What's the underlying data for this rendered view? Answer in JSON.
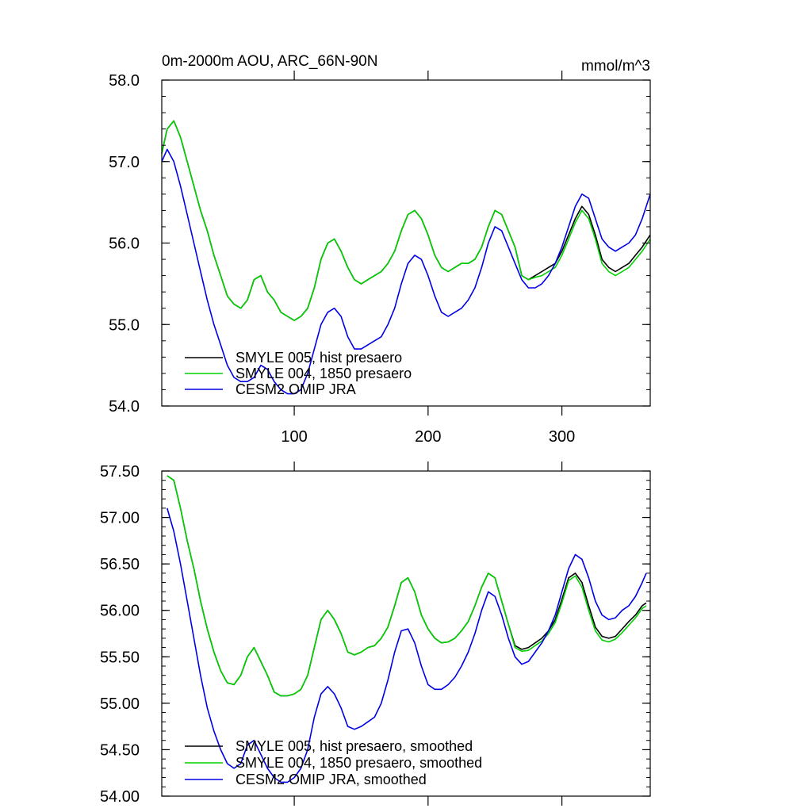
{
  "figure": {
    "title_left": "0m-2000m AOU, ARC_66N-90N",
    "title_right": "mmol/m^3"
  },
  "chart_data": [
    {
      "type": "line",
      "title": "0m-2000m AOU, ARC_66N-90N",
      "units": "mmol/m^3",
      "xlabel": "",
      "ylabel": "",
      "xlim": [
        1,
        366
      ],
      "ylim": [
        54.0,
        58.0
      ],
      "xticks": [
        100,
        200,
        300
      ],
      "xtick_labels": [
        "100",
        "200",
        "300"
      ],
      "yticks": [
        54.0,
        55.0,
        56.0,
        57.0,
        58.0
      ],
      "ytick_labels": [
        "54.0",
        "55.0",
        "56.0",
        "57.0",
        "58.0"
      ],
      "grid": false,
      "legend_position": "bottom-left",
      "series": [
        {
          "name": "SMYLE 005, hist presaero",
          "color": "#000000",
          "x": [
            1,
            5,
            10,
            15,
            20,
            25,
            30,
            35,
            40,
            45,
            50,
            55,
            60,
            65,
            70,
            75,
            80,
            85,
            90,
            95,
            100,
            105,
            110,
            115,
            120,
            125,
            130,
            135,
            140,
            145,
            150,
            155,
            160,
            165,
            170,
            175,
            180,
            185,
            190,
            195,
            200,
            205,
            210,
            215,
            220,
            225,
            230,
            235,
            240,
            245,
            250,
            255,
            260,
            265,
            270,
            275,
            280,
            285,
            290,
            295,
            300,
            305,
            310,
            315,
            320,
            325,
            330,
            335,
            340,
            345,
            350,
            355,
            360,
            366
          ],
          "values": [
            57.1,
            57.4,
            57.5,
            57.3,
            57.0,
            56.7,
            56.4,
            56.15,
            55.85,
            55.6,
            55.35,
            55.25,
            55.2,
            55.3,
            55.55,
            55.6,
            55.4,
            55.3,
            55.15,
            55.1,
            55.05,
            55.1,
            55.2,
            55.45,
            55.8,
            56.0,
            56.05,
            55.9,
            55.7,
            55.55,
            55.5,
            55.55,
            55.6,
            55.65,
            55.75,
            55.9,
            56.15,
            56.35,
            56.4,
            56.3,
            56.1,
            55.85,
            55.7,
            55.65,
            55.7,
            55.75,
            55.75,
            55.8,
            55.95,
            56.2,
            56.4,
            56.35,
            56.15,
            55.95,
            55.6,
            55.55,
            55.6,
            55.65,
            55.7,
            55.75,
            55.9,
            56.1,
            56.3,
            56.45,
            56.35,
            56.1,
            55.8,
            55.7,
            55.65,
            55.7,
            55.75,
            55.85,
            55.95,
            56.1
          ]
        },
        {
          "name": "SMYLE 004, 1850 presaero",
          "color": "#00d200",
          "x": [
            1,
            5,
            10,
            15,
            20,
            25,
            30,
            35,
            40,
            45,
            50,
            55,
            60,
            65,
            70,
            75,
            80,
            85,
            90,
            95,
            100,
            105,
            110,
            115,
            120,
            125,
            130,
            135,
            140,
            145,
            150,
            155,
            160,
            165,
            170,
            175,
            180,
            185,
            190,
            195,
            200,
            205,
            210,
            215,
            220,
            225,
            230,
            235,
            240,
            245,
            250,
            255,
            260,
            265,
            270,
            275,
            280,
            285,
            290,
            295,
            300,
            305,
            310,
            315,
            320,
            325,
            330,
            335,
            340,
            345,
            350,
            355,
            360,
            366
          ],
          "values": [
            57.1,
            57.4,
            57.5,
            57.3,
            57.0,
            56.7,
            56.4,
            56.15,
            55.85,
            55.6,
            55.35,
            55.25,
            55.2,
            55.3,
            55.55,
            55.6,
            55.4,
            55.3,
            55.15,
            55.1,
            55.05,
            55.1,
            55.2,
            55.45,
            55.8,
            56.0,
            56.05,
            55.9,
            55.7,
            55.55,
            55.5,
            55.55,
            55.6,
            55.65,
            55.75,
            55.9,
            56.15,
            56.35,
            56.4,
            56.3,
            56.1,
            55.85,
            55.7,
            55.65,
            55.7,
            55.75,
            55.75,
            55.8,
            55.95,
            56.2,
            56.4,
            56.35,
            56.15,
            55.95,
            55.6,
            55.55,
            55.58,
            55.6,
            55.65,
            55.7,
            55.85,
            56.05,
            56.25,
            56.4,
            56.3,
            56.05,
            55.75,
            55.65,
            55.6,
            55.65,
            55.7,
            55.8,
            55.9,
            56.05
          ]
        },
        {
          "name": "CESM2 OMIP JRA",
          "color": "#0000e6",
          "x": [
            1,
            5,
            10,
            15,
            20,
            25,
            30,
            35,
            40,
            45,
            50,
            55,
            60,
            65,
            70,
            75,
            80,
            85,
            90,
            95,
            100,
            105,
            110,
            115,
            120,
            125,
            130,
            135,
            140,
            145,
            150,
            155,
            160,
            165,
            170,
            175,
            180,
            185,
            190,
            195,
            200,
            205,
            210,
            215,
            220,
            225,
            230,
            235,
            240,
            245,
            250,
            255,
            260,
            265,
            270,
            275,
            280,
            285,
            290,
            295,
            300,
            305,
            310,
            315,
            320,
            325,
            330,
            335,
            340,
            345,
            350,
            355,
            360,
            366
          ],
          "values": [
            57.0,
            57.15,
            57.0,
            56.7,
            56.35,
            56.0,
            55.65,
            55.3,
            55.0,
            54.75,
            54.5,
            54.35,
            54.3,
            54.3,
            54.35,
            54.5,
            54.45,
            54.3,
            54.2,
            54.15,
            54.15,
            54.2,
            54.4,
            54.7,
            55.0,
            55.15,
            55.2,
            55.1,
            54.85,
            54.7,
            54.7,
            54.75,
            54.8,
            54.85,
            55.0,
            55.2,
            55.5,
            55.75,
            55.85,
            55.8,
            55.6,
            55.35,
            55.15,
            55.1,
            55.15,
            55.2,
            55.3,
            55.45,
            55.7,
            56.0,
            56.2,
            56.15,
            55.95,
            55.75,
            55.55,
            55.45,
            55.45,
            55.5,
            55.6,
            55.75,
            55.95,
            56.2,
            56.45,
            56.6,
            56.55,
            56.3,
            56.05,
            55.95,
            55.9,
            55.95,
            56.0,
            56.1,
            56.3,
            56.6
          ]
        }
      ]
    },
    {
      "type": "line",
      "title": "",
      "xlabel": "",
      "ylabel": "",
      "xlim": [
        1,
        366
      ],
      "ylim": [
        54.0,
        57.5
      ],
      "xticks": [
        100,
        200,
        300
      ],
      "xtick_labels": [],
      "yticks": [
        54.0,
        54.5,
        55.0,
        55.5,
        56.0,
        56.5,
        57.0,
        57.5
      ],
      "ytick_labels": [
        "54.00",
        "54.50",
        "55.00",
        "55.50",
        "56.00",
        "56.50",
        "57.00",
        "57.50"
      ],
      "grid": false,
      "legend_position": "bottom-left",
      "series": [
        {
          "name": "SMYLE 005, hist presaero, smoothed",
          "color": "#000000",
          "x": [
            5,
            10,
            15,
            20,
            25,
            30,
            35,
            40,
            45,
            50,
            55,
            60,
            65,
            70,
            75,
            80,
            85,
            90,
            95,
            100,
            105,
            110,
            115,
            120,
            125,
            130,
            135,
            140,
            145,
            150,
            155,
            160,
            165,
            170,
            175,
            180,
            185,
            190,
            195,
            200,
            205,
            210,
            215,
            220,
            225,
            230,
            235,
            240,
            245,
            250,
            255,
            260,
            265,
            270,
            275,
            280,
            285,
            290,
            295,
            300,
            305,
            310,
            315,
            320,
            325,
            330,
            335,
            340,
            345,
            350,
            355,
            360,
            363
          ],
          "values": [
            57.45,
            57.4,
            57.1,
            56.75,
            56.45,
            56.1,
            55.8,
            55.55,
            55.35,
            55.22,
            55.2,
            55.3,
            55.5,
            55.6,
            55.45,
            55.3,
            55.12,
            55.08,
            55.08,
            55.1,
            55.15,
            55.3,
            55.6,
            55.9,
            56.0,
            55.9,
            55.75,
            55.55,
            55.52,
            55.55,
            55.6,
            55.62,
            55.7,
            55.82,
            56.05,
            56.3,
            56.35,
            56.2,
            55.95,
            55.8,
            55.7,
            55.65,
            55.66,
            55.7,
            55.78,
            55.88,
            56.05,
            56.25,
            56.4,
            56.35,
            56.1,
            55.85,
            55.62,
            55.58,
            55.6,
            55.65,
            55.7,
            55.78,
            55.9,
            56.12,
            56.35,
            56.4,
            56.3,
            56.05,
            55.82,
            55.72,
            55.7,
            55.72,
            55.8,
            55.88,
            55.95,
            56.05,
            56.08
          ]
        },
        {
          "name": "SMYLE 004, 1850 presaero, smoothed",
          "color": "#00d200",
          "x": [
            5,
            10,
            15,
            20,
            25,
            30,
            35,
            40,
            45,
            50,
            55,
            60,
            65,
            70,
            75,
            80,
            85,
            90,
            95,
            100,
            105,
            110,
            115,
            120,
            125,
            130,
            135,
            140,
            145,
            150,
            155,
            160,
            165,
            170,
            175,
            180,
            185,
            190,
            195,
            200,
            205,
            210,
            215,
            220,
            225,
            230,
            235,
            240,
            245,
            250,
            255,
            260,
            265,
            270,
            275,
            280,
            285,
            290,
            295,
            300,
            305,
            310,
            315,
            320,
            325,
            330,
            335,
            340,
            345,
            350,
            355,
            360,
            363
          ],
          "values": [
            57.45,
            57.4,
            57.1,
            56.75,
            56.45,
            56.1,
            55.8,
            55.55,
            55.35,
            55.22,
            55.2,
            55.3,
            55.5,
            55.6,
            55.45,
            55.3,
            55.12,
            55.08,
            55.08,
            55.1,
            55.15,
            55.3,
            55.6,
            55.9,
            56.0,
            55.9,
            55.75,
            55.55,
            55.52,
            55.55,
            55.6,
            55.62,
            55.7,
            55.82,
            56.05,
            56.3,
            56.35,
            56.2,
            55.95,
            55.8,
            55.7,
            55.65,
            55.66,
            55.7,
            55.78,
            55.88,
            56.05,
            56.25,
            56.4,
            56.35,
            56.1,
            55.85,
            55.6,
            55.56,
            55.57,
            55.62,
            55.67,
            55.75,
            55.87,
            56.08,
            56.32,
            56.37,
            56.25,
            56.0,
            55.78,
            55.68,
            55.66,
            55.69,
            55.76,
            55.84,
            55.92,
            56.02,
            56.05
          ]
        },
        {
          "name": "CESM2 OMIP JRA, smoothed",
          "color": "#0000e6",
          "x": [
            5,
            10,
            15,
            20,
            25,
            30,
            35,
            40,
            45,
            50,
            55,
            60,
            65,
            70,
            75,
            80,
            85,
            90,
            95,
            100,
            105,
            110,
            115,
            120,
            125,
            130,
            135,
            140,
            145,
            150,
            155,
            160,
            165,
            170,
            175,
            180,
            185,
            190,
            195,
            200,
            205,
            210,
            215,
            220,
            225,
            230,
            235,
            240,
            245,
            250,
            255,
            260,
            265,
            270,
            275,
            280,
            285,
            290,
            295,
            300,
            305,
            310,
            315,
            320,
            325,
            330,
            335,
            340,
            345,
            350,
            355,
            360,
            363
          ],
          "values": [
            57.1,
            56.85,
            56.5,
            56.1,
            55.7,
            55.3,
            54.95,
            54.7,
            54.5,
            54.35,
            54.3,
            54.35,
            54.55,
            54.6,
            54.45,
            54.3,
            54.2,
            54.15,
            54.15,
            54.2,
            54.3,
            54.5,
            54.85,
            55.1,
            55.18,
            55.1,
            54.95,
            54.75,
            54.72,
            54.75,
            54.8,
            54.85,
            55.0,
            55.25,
            55.55,
            55.78,
            55.8,
            55.65,
            55.4,
            55.2,
            55.15,
            55.15,
            55.2,
            55.28,
            55.4,
            55.55,
            55.75,
            56.0,
            56.2,
            56.15,
            55.95,
            55.7,
            55.5,
            55.42,
            55.45,
            55.55,
            55.65,
            55.78,
            55.95,
            56.2,
            56.45,
            56.6,
            56.55,
            56.35,
            56.1,
            55.95,
            55.9,
            55.92,
            56.0,
            56.05,
            56.15,
            56.3,
            56.4
          ]
        }
      ]
    }
  ]
}
